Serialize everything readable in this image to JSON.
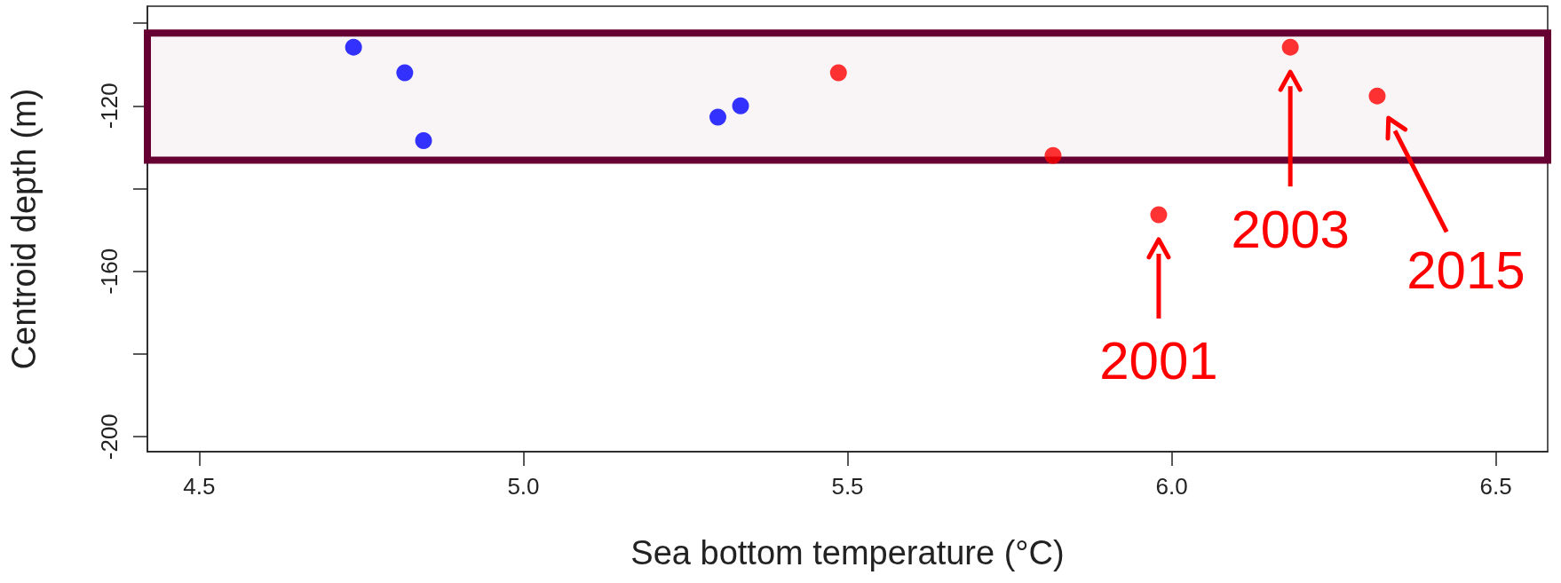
{
  "chart_data": {
    "type": "scatter",
    "xlabel": "Sea bottom temperature (°C)",
    "ylabel": "Centroid depth (m)",
    "xlim": [
      4.42,
      6.58
    ],
    "xticks": [
      4.5,
      {
        "value": 5,
        "label": "5.0"
      },
      5.5,
      {
        "value": 6,
        "label": "6.0"
      },
      6.5
    ],
    "ylim": [
      -203.6,
      -95.9
    ],
    "yticks": [
      -200,
      {
        "value": -180,
        "label": null
      },
      -160,
      {
        "value": -140,
        "label": null
      },
      -120,
      {
        "value": -100,
        "label": null
      }
    ],
    "grid": false,
    "marker": "circle",
    "series": [
      {
        "color": "#0000ff",
        "x": [
          4.738,
          4.817,
          4.846,
          5.3,
          5.335
        ],
        "values": [
          -105.8,
          -112.0,
          -128.4,
          -122.7,
          -120.0
        ]
      },
      {
        "color": "#ff0000",
        "x": [
          5.486,
          5.817,
          5.98,
          6.183,
          6.317
        ],
        "values": [
          -112.0,
          -132.0,
          -146.3,
          -105.8,
          -117.6
        ]
      }
    ],
    "bands": [
      {
        "axis": "y",
        "from": -133.1,
        "to": -102.4,
        "color": "#660033"
      }
    ],
    "annotations": [
      {
        "text": "2001",
        "x": 5.98,
        "y": -146.3
      },
      {
        "text": "2003",
        "x": 6.183,
        "y": -105.8
      },
      {
        "text": "2015",
        "x": 6.317,
        "y": -117.6
      }
    ]
  }
}
